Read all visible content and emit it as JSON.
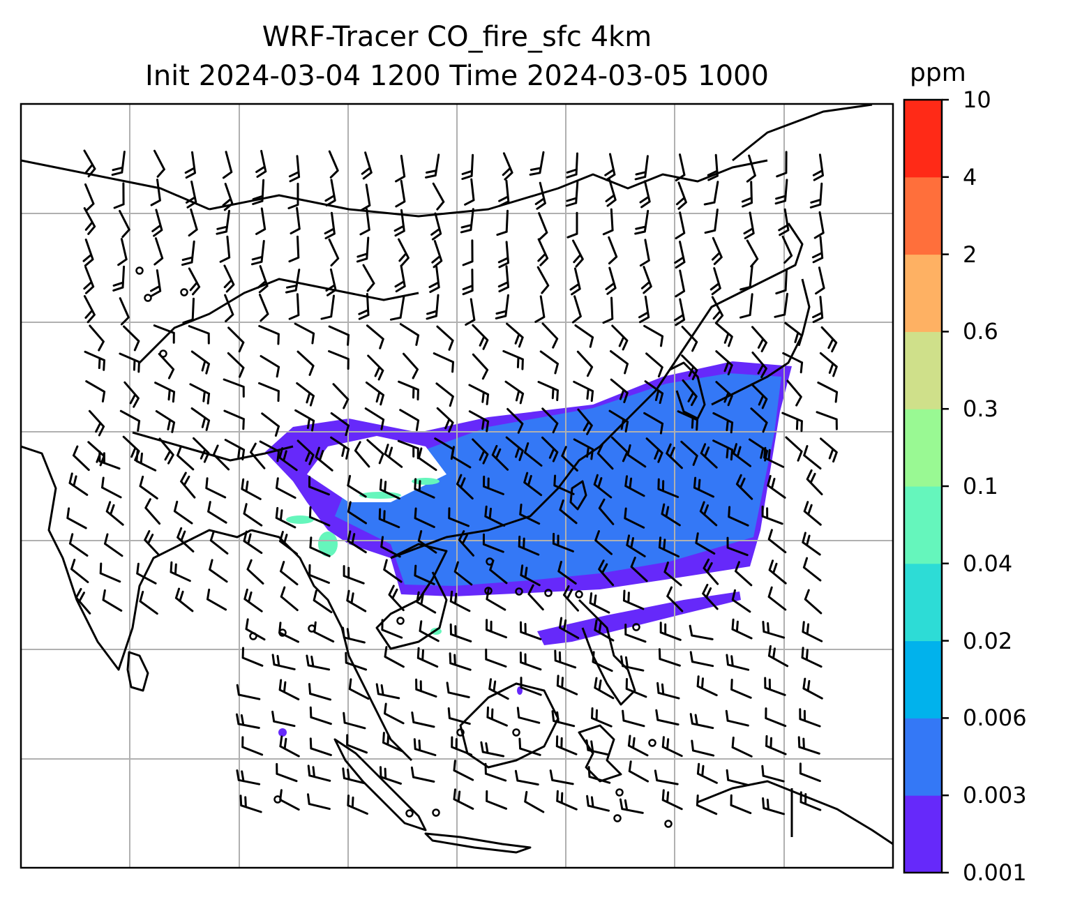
{
  "title": {
    "line1": "WRF-Tracer CO_fire_sfc 4km",
    "line2": "Init 2024-03-04 1200 Time 2024-03-05 1000"
  },
  "colorbar": {
    "unit": "ppm",
    "levels": [
      "0.001",
      "0.003",
      "0.006",
      "0.02",
      "0.04",
      "0.1",
      "0.3",
      "0.6",
      "2",
      "4",
      "10"
    ],
    "colors": [
      "#6629fa",
      "#3478f6",
      "#01b2ec",
      "#2ddcd6",
      "#65f6bc",
      "#99f993",
      "#cfe08a",
      "#feb163",
      "#ff6f3b",
      "#ff2a17"
    ]
  },
  "map": {
    "gridlines": true,
    "features": [
      "coastline",
      "country-borders",
      "wind-barbs",
      "co-tracer-plume"
    ],
    "plume_colors": {
      "low": "#6629fa",
      "mid": "#3478f6",
      "high": "#65f6bc"
    }
  }
}
